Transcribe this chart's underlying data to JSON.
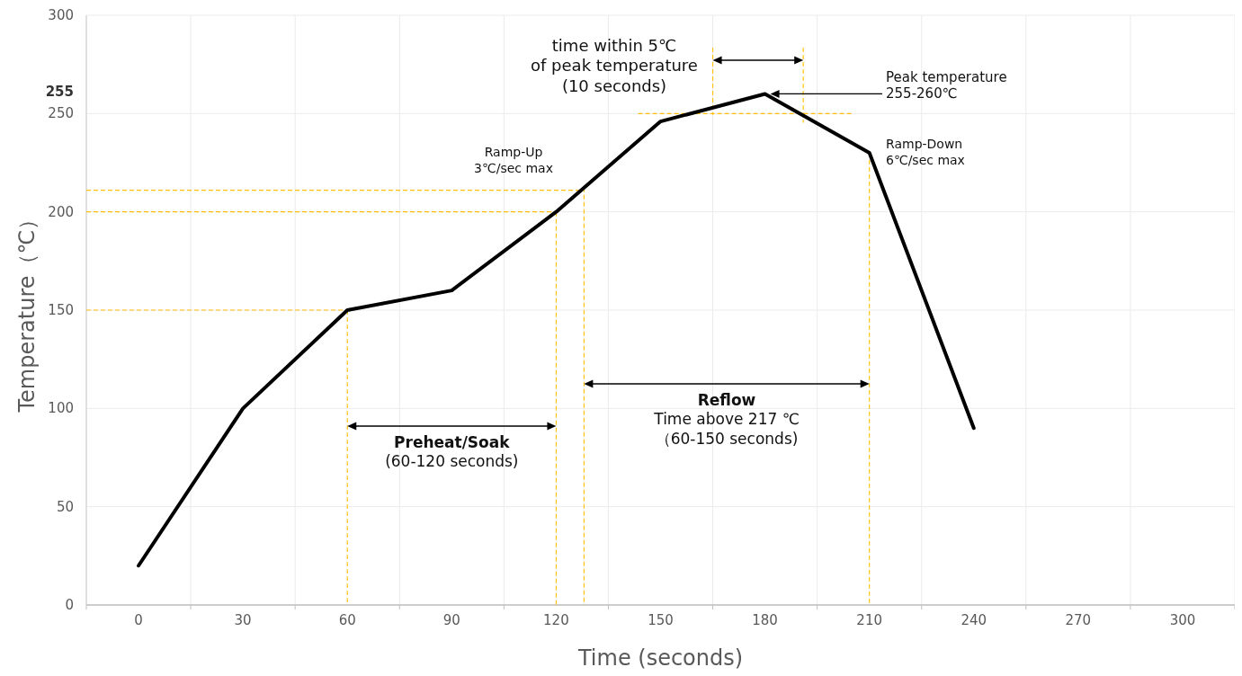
{
  "chart_data": {
    "type": "line",
    "xlabel": "Time (seconds)",
    "ylabel": "Temperature（℃）",
    "x": [
      0,
      30,
      60,
      90,
      120,
      150,
      180,
      210,
      240
    ],
    "series": [
      {
        "color": "#000000",
        "values": [
          20,
          100,
          150,
          160,
          200,
          246,
          260,
          230,
          90
        ]
      }
    ],
    "xlim": [
      -15,
      315
    ],
    "xticks": [
      {
        "value": -15,
        "label": null
      },
      0,
      {
        "value": 15,
        "label": null
      },
      30,
      {
        "value": 45,
        "label": null
      },
      60,
      {
        "value": 75,
        "label": null
      },
      90,
      {
        "value": 105,
        "label": null
      },
      120,
      {
        "value": 135,
        "label": null
      },
      150,
      {
        "value": 165,
        "label": null
      },
      180,
      {
        "value": 195,
        "label": null
      },
      210,
      {
        "value": 225,
        "label": null
      },
      240,
      {
        "value": 255,
        "label": null
      },
      270,
      {
        "value": 285,
        "label": null
      },
      300,
      {
        "value": 315,
        "label": null
      }
    ],
    "ylim": [
      0,
      300
    ],
    "yticks": [
      0,
      50,
      100,
      150,
      200,
      250,
      300
    ],
    "grid": true,
    "marker": "none",
    "line_style": "solid",
    "ref_lines": [
      {
        "axis": "y",
        "value": 150,
        "color": "#ffc000",
        "line_style": "dashed"
      },
      {
        "axis": "y",
        "value": 200,
        "color": "#ffc000",
        "line_style": "dashed"
      },
      {
        "axis": "y",
        "value": 211,
        "color": "#ffc000",
        "line_style": "dashed"
      },
      {
        "axis": "y",
        "value": 250,
        "color": "#ffc000",
        "line_style": "dashed"
      },
      {
        "axis": "x",
        "value": 60,
        "color": "#ffc000",
        "line_style": "dashed"
      },
      {
        "axis": "x",
        "value": 120,
        "color": "#ffc000",
        "line_style": "dashed"
      },
      {
        "axis": "x",
        "value": 128,
        "color": "#ffc000",
        "line_style": "dashed"
      },
      {
        "axis": "x",
        "value": 165,
        "color": "#ffc000",
        "line_style": "dashed"
      },
      {
        "axis": "x",
        "value": 191,
        "color": "#ffc000",
        "line_style": "dashed"
      },
      {
        "axis": "x",
        "value": 210,
        "color": "#ffc000",
        "line_style": "dashed"
      }
    ],
    "annotations": [
      "255",
      "time within 5℃\nof peak temperature\n(10 seconds)",
      "Peak temperature\n255-260℃",
      "Ramp-Up\n3℃/sec max",
      "Ramp-Down\n6℃/sec max",
      "Preheat/Soak\n(60-120 seconds)",
      "Reflow\nTime above 217 ℃\n（60-150 seconds)"
    ]
  }
}
